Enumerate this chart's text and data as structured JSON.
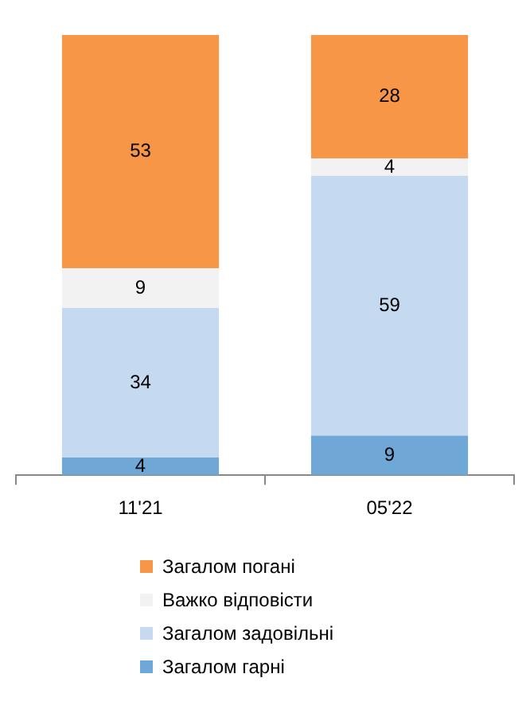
{
  "chart_data": {
    "type": "bar",
    "stacked": true,
    "categories": [
      "11'21",
      "05'22"
    ],
    "series": [
      {
        "name": "Загалом гарні",
        "color": "#6fa8d6",
        "values": [
          4,
          9
        ]
      },
      {
        "name": "Загалом задовільні",
        "color": "#c5daf0",
        "values": [
          34,
          59
        ]
      },
      {
        "name": "Важко відповісти",
        "color": "#f2f2f2",
        "values": [
          9,
          4
        ]
      },
      {
        "name": "Загалом погані",
        "color": "#f79646",
        "values": [
          53,
          28
        ]
      }
    ],
    "data_labels": true,
    "legend": "bottom",
    "grid": false,
    "tick_labels": "x"
  }
}
